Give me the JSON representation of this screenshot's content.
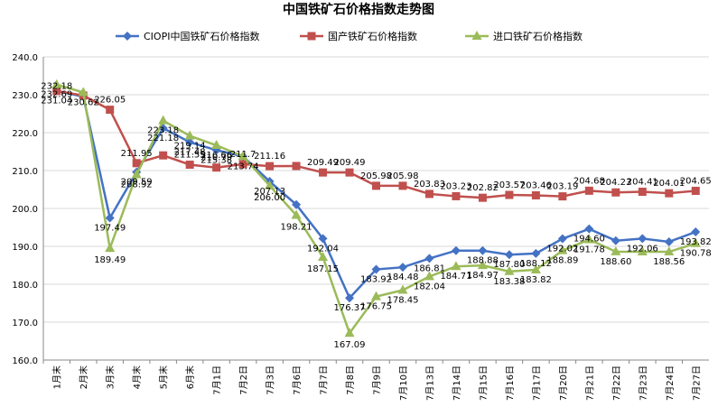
{
  "chart_data": {
    "type": "line",
    "title": "中国铁矿石价格指数走势图",
    "categories": [
      "1月末",
      "2月末",
      "3月末",
      "4月末",
      "5月末",
      "6月末",
      "7月1日",
      "7月2日",
      "7月3日",
      "7月6日",
      "7月7日",
      "7月8日",
      "7月9日",
      "7月10日",
      "7月13日",
      "7月14日",
      "7月15日",
      "7月16日",
      "7月17日",
      "7月20日",
      "7月21日",
      "7月22日",
      "7月23日",
      "7月24日",
      "7月27日"
    ],
    "ylim": [
      160,
      240
    ],
    "yticks": [
      "160.0",
      "170.0",
      "180.0",
      "190.0",
      "200.0",
      "210.0",
      "220.0",
      "230.0",
      "240.0"
    ],
    "grid": true,
    "legend_position": "top",
    "series": [
      {
        "name": "CIOPI中国铁矿石价格指数",
        "color": "#4472c4",
        "marker": "diamond",
        "values": [
          231.04,
          229.5,
          197.49,
          209.59,
          221.18,
          217.48,
          215.38,
          213.74,
          207.13,
          201.0,
          192.04,
          176.37,
          183.92,
          184.48,
          186.81,
          188.88,
          188.88,
          187.8,
          188.12,
          192.02,
          194.6,
          191.5,
          192.06,
          191.2,
          193.82
        ],
        "labels": [
          "231.04",
          "",
          "197.49",
          "209.59",
          "221.18",
          "217.48",
          "215.38",
          "",
          "207.13",
          "",
          "192.04",
          "176.37",
          "183.92",
          "184.48",
          "186.81",
          "",
          "188.88",
          "187.80",
          "188.12",
          "192.02",
          "194.60",
          "",
          "192.06",
          "",
          "193.82"
        ]
      },
      {
        "name": "国产铁矿石价格指数",
        "color": "#c0504d",
        "marker": "square",
        "values": [
          231.0,
          229.8,
          226.05,
          211.95,
          214.0,
          211.55,
          210.79,
          211.7,
          211.16,
          211.2,
          209.49,
          209.49,
          205.98,
          205.98,
          203.83,
          203.23,
          202.82,
          203.57,
          203.46,
          203.19,
          204.68,
          204.23,
          204.41,
          204.01,
          204.65
        ],
        "labels": [
          "",
          "",
          "226.05",
          "211.95",
          "",
          "211.55",
          "210.79",
          "211.7",
          "211.16",
          "",
          "209.49",
          "209.49",
          "205.98",
          "205.98",
          "203.83",
          "203.23",
          "202.82",
          "203.57",
          "203.46",
          "203.19",
          "204.68",
          "204.23",
          "204.41",
          "204.01",
          "204.65"
        ]
      },
      {
        "name": "进口铁矿石价格指数",
        "color": "#9bbb59",
        "marker": "triangle",
        "values": [
          232.69,
          230.62,
          189.49,
          208.92,
          223.18,
          219.14,
          216.66,
          213.74,
          206.0,
          198.21,
          187.15,
          167.09,
          176.75,
          178.45,
          182.04,
          184.71,
          184.97,
          183.38,
          183.82,
          188.89,
          191.78,
          188.6,
          188.56,
          188.56,
          190.78
        ],
        "labels": [
          "232.69",
          "230.62",
          "189.49",
          "208.92",
          "223.18",
          "219.14",
          "216.66",
          "213.74",
          "206.00",
          "198.21",
          "187.15",
          "167.09",
          "176.75",
          "178.45",
          "182.04",
          "184.71",
          "184.97",
          "183.38",
          "183.82",
          "188.89",
          "191.78",
          "188.60",
          "",
          "188.56",
          "190.78"
        ]
      }
    ],
    "extra_labels": [
      "232.18"
    ]
  }
}
